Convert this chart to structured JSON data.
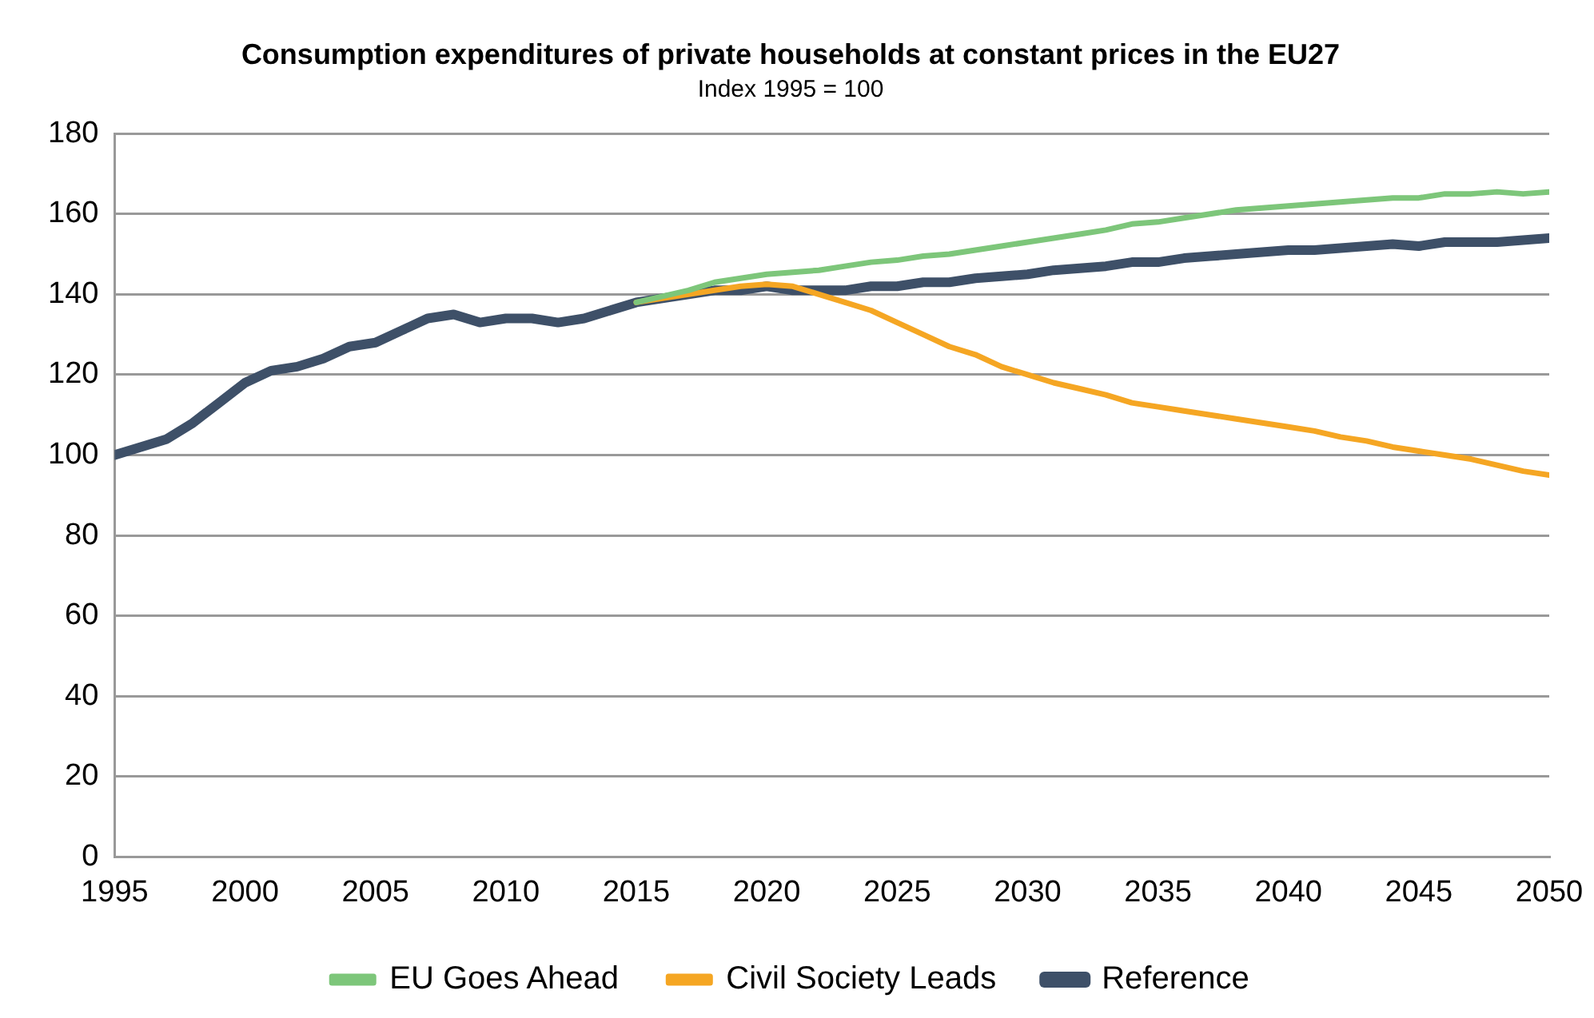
{
  "chart_data": {
    "type": "line",
    "title": "Consumption expenditures of private households at constant prices in the EU27",
    "subtitle": "Index 1995 = 100",
    "xlim": [
      1995,
      2050
    ],
    "xticks": [
      1995,
      2000,
      2005,
      2010,
      2015,
      2020,
      2025,
      2030,
      2035,
      2040,
      2045,
      2050
    ],
    "ylim": [
      0,
      180
    ],
    "yticks": [
      0,
      20,
      40,
      60,
      80,
      100,
      120,
      140,
      160,
      180
    ],
    "grid": "y",
    "legend": "bottom",
    "marker": "none",
    "line_style": "solid",
    "series": [
      {
        "name": "EU Goes Ahead",
        "color": "#7dc67a",
        "x": [
          2015,
          2016,
          2017,
          2018,
          2019,
          2020,
          2021,
          2022,
          2023,
          2024,
          2025,
          2026,
          2027,
          2028,
          2029,
          2030,
          2031,
          2032,
          2033,
          2034,
          2035,
          2036,
          2037,
          2038,
          2039,
          2040,
          2041,
          2042,
          2043,
          2044,
          2045,
          2046,
          2047,
          2048,
          2049,
          2050
        ],
        "values": [
          138,
          139.5,
          141,
          143,
          144,
          145,
          145.5,
          146,
          147,
          148,
          148.5,
          149.5,
          150,
          151,
          152,
          153,
          154,
          155,
          156,
          157.5,
          158,
          159,
          160,
          161,
          161.5,
          162,
          162.5,
          163,
          163.5,
          164,
          164,
          165,
          165,
          165.5,
          165,
          165.5
        ]
      },
      {
        "name": "Civil Society Leads",
        "color": "#f5a623",
        "x": [
          2015,
          2016,
          2017,
          2018,
          2019,
          2020,
          2021,
          2022,
          2023,
          2024,
          2025,
          2026,
          2027,
          2028,
          2029,
          2030,
          2031,
          2032,
          2033,
          2034,
          2035,
          2036,
          2037,
          2038,
          2039,
          2040,
          2041,
          2042,
          2043,
          2044,
          2045,
          2046,
          2047,
          2048,
          2049,
          2050
        ],
        "values": [
          138,
          139,
          140,
          141,
          142,
          142.5,
          142,
          140,
          138,
          136,
          133,
          130,
          127,
          125,
          122,
          120,
          118,
          116.5,
          115,
          113,
          112,
          111,
          110,
          109,
          108,
          107,
          106,
          104.5,
          103.5,
          102,
          101,
          100,
          99,
          97.5,
          96,
          95
        ]
      },
      {
        "name": "Reference",
        "color": "#3e5068",
        "x": [
          1995,
          1996,
          1997,
          1998,
          1999,
          2000,
          2001,
          2002,
          2003,
          2004,
          2005,
          2006,
          2007,
          2008,
          2009,
          2010,
          2011,
          2012,
          2013,
          2014,
          2015,
          2016,
          2017,
          2018,
          2019,
          2020,
          2021,
          2022,
          2023,
          2024,
          2025,
          2026,
          2027,
          2028,
          2029,
          2030,
          2031,
          2032,
          2033,
          2034,
          2035,
          2036,
          2037,
          2038,
          2039,
          2040,
          2041,
          2042,
          2043,
          2044,
          2045,
          2046,
          2047,
          2048,
          2049,
          2050
        ],
        "values": [
          100,
          102,
          104,
          108,
          113,
          118,
          121,
          122,
          124,
          127,
          128,
          131,
          134,
          135,
          133,
          134,
          134,
          133,
          134,
          136,
          138,
          139,
          140,
          141,
          141,
          142,
          141,
          141,
          141,
          142,
          142,
          143,
          143,
          144,
          144.5,
          145,
          146,
          146.5,
          147,
          148,
          148,
          149,
          149.5,
          150,
          150.5,
          151,
          151,
          151.5,
          152,
          152.5,
          152,
          153,
          153,
          153,
          153.5,
          154
        ]
      }
    ]
  }
}
